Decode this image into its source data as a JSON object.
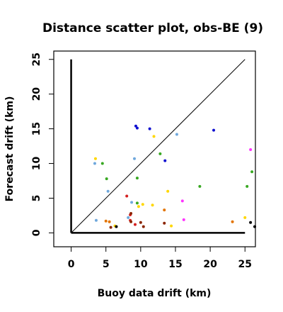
{
  "chart_data": {
    "type": "scatter",
    "title": "Distance scatter plot, obs-BE (9)",
    "xlabel": "Buoy data drift (km)",
    "ylabel": "Forecast drift (km)",
    "xlim": [
      -2.5,
      26.5
    ],
    "ylim": [
      -2.0,
      26.2
    ],
    "xticks": [
      0,
      5,
      10,
      15,
      20,
      25
    ],
    "yticks": [
      0,
      5,
      10,
      15,
      20,
      25
    ],
    "reference_line": {
      "from": [
        0,
        0
      ],
      "to": [
        25,
        25
      ]
    },
    "axes_lines": {
      "vertical_x": 0,
      "vertical_y_max": 25,
      "horizontal_y": 0,
      "horizontal_x_max": 25
    },
    "grid": false,
    "points": [
      {
        "x": 3.5,
        "y": 10.7,
        "color": "#ffd700"
      },
      {
        "x": 3.4,
        "y": 10.0,
        "color": "#6fa8dc"
      },
      {
        "x": 4.5,
        "y": 10.0,
        "color": "#38a822"
      },
      {
        "x": 5.1,
        "y": 7.8,
        "color": "#38a822"
      },
      {
        "x": 5.3,
        "y": 6.0,
        "color": "#6fa8dc"
      },
      {
        "x": 3.6,
        "y": 1.8,
        "color": "#6fa8dc"
      },
      {
        "x": 5.0,
        "y": 1.7,
        "color": "#e37400"
      },
      {
        "x": 5.5,
        "y": 1.6,
        "color": "#e37400"
      },
      {
        "x": 5.7,
        "y": 0.8,
        "color": "#8b2500"
      },
      {
        "x": 6.3,
        "y": 1.0,
        "color": "#ffd700"
      },
      {
        "x": 6.5,
        "y": 0.9,
        "color": "#000000"
      },
      {
        "x": 8.0,
        "y": 5.3,
        "color": "#d42020"
      },
      {
        "x": 8.2,
        "y": 2.2,
        "color": "#6fa8dc"
      },
      {
        "x": 8.5,
        "y": 2.6,
        "color": "#d42020"
      },
      {
        "x": 8.6,
        "y": 2.8,
        "color": "#8b2500"
      },
      {
        "x": 8.5,
        "y": 1.8,
        "color": "#d42020"
      },
      {
        "x": 8.6,
        "y": 1.6,
        "color": "#8b2500"
      },
      {
        "x": 9.2,
        "y": 1.2,
        "color": "#d42020"
      },
      {
        "x": 8.7,
        "y": 4.4,
        "color": "#6fa8dc"
      },
      {
        "x": 9.5,
        "y": 4.3,
        "color": "#38a822"
      },
      {
        "x": 9.7,
        "y": 3.8,
        "color": "#ffd700"
      },
      {
        "x": 10.3,
        "y": 4.1,
        "color": "#ffd700"
      },
      {
        "x": 10.0,
        "y": 1.5,
        "color": "#8b2500"
      },
      {
        "x": 10.4,
        "y": 0.9,
        "color": "#8b2500"
      },
      {
        "x": 9.1,
        "y": 10.7,
        "color": "#6fa8dc"
      },
      {
        "x": 9.5,
        "y": 7.9,
        "color": "#38a822"
      },
      {
        "x": 9.3,
        "y": 15.4,
        "color": "#1010d0"
      },
      {
        "x": 9.5,
        "y": 15.1,
        "color": "#1010d0"
      },
      {
        "x": 11.3,
        "y": 15.0,
        "color": "#1010d0"
      },
      {
        "x": 11.9,
        "y": 13.9,
        "color": "#ffd700"
      },
      {
        "x": 11.7,
        "y": 4.0,
        "color": "#ffd700"
      },
      {
        "x": 12.8,
        "y": 11.4,
        "color": "#38a822"
      },
      {
        "x": 13.5,
        "y": 10.4,
        "color": "#1010d0"
      },
      {
        "x": 13.4,
        "y": 3.3,
        "color": "#e37400"
      },
      {
        "x": 13.9,
        "y": 6.0,
        "color": "#ffd700"
      },
      {
        "x": 13.4,
        "y": 1.4,
        "color": "#8b2500"
      },
      {
        "x": 14.4,
        "y": 1.0,
        "color": "#ffd700"
      },
      {
        "x": 15.2,
        "y": 14.2,
        "color": "#6fa8dc"
      },
      {
        "x": 16.0,
        "y": 4.6,
        "color": "#ff33ff"
      },
      {
        "x": 16.2,
        "y": 1.9,
        "color": "#ff33ff"
      },
      {
        "x": 18.5,
        "y": 6.7,
        "color": "#38a822"
      },
      {
        "x": 20.5,
        "y": 14.8,
        "color": "#1010d0"
      },
      {
        "x": 23.2,
        "y": 1.6,
        "color": "#e37400"
      },
      {
        "x": 25.0,
        "y": 2.2,
        "color": "#ffd700"
      },
      {
        "x": 25.3,
        "y": 6.7,
        "color": "#38a822"
      },
      {
        "x": 25.8,
        "y": 12.0,
        "color": "#ff33ff"
      },
      {
        "x": 26.0,
        "y": 8.8,
        "color": "#38a822"
      },
      {
        "x": 25.8,
        "y": 1.5,
        "color": "#000000"
      },
      {
        "x": 26.4,
        "y": 0.9,
        "color": "#000000"
      }
    ]
  }
}
